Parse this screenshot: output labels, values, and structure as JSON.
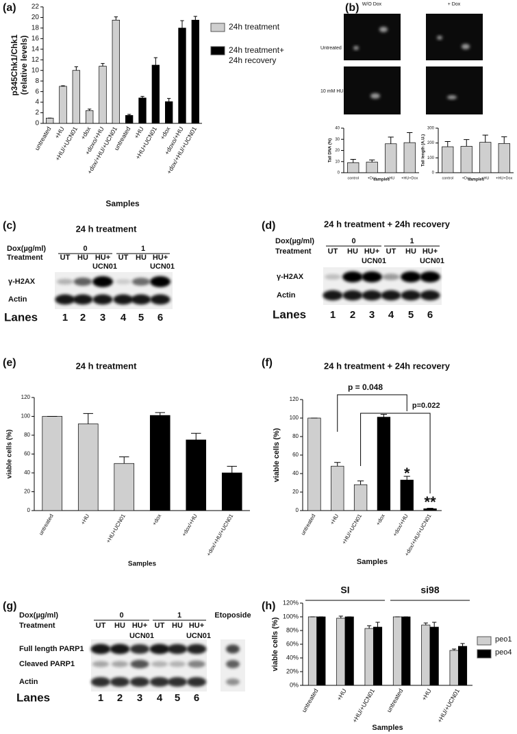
{
  "chart_data": [
    {
      "type": "bar",
      "panel": "(a)",
      "ylabel": [
        "p345Chk1/Chk1",
        "(relative levels)"
      ],
      "xlabel": "Samples",
      "categories": [
        "untreated",
        "+HU",
        "+HU/+UCN01",
        "+dox",
        "+doxo/+HU",
        "+dox/+HU/+UCN01",
        "untreated",
        "+HU",
        "+HU+UCN01",
        "+dox",
        "+doxo/+HU",
        "+dox/+HU/+UCN01"
      ],
      "series": [
        {
          "name": "24h treatment",
          "color": "#cfcfcf",
          "values": [
            1,
            7,
            10,
            2.4,
            10.8,
            19.5,
            null,
            null,
            null,
            null,
            null,
            null
          ],
          "errors": [
            0,
            0.1,
            0.7,
            0.3,
            0.5,
            0.6,
            null,
            null,
            null,
            null,
            null,
            null
          ]
        },
        {
          "name": "24h treatment+ 24h recovery",
          "color": "#000000",
          "values": [
            null,
            null,
            null,
            null,
            null,
            null,
            1.5,
            4.8,
            11,
            4.1,
            18,
            19.5
          ],
          "errors": [
            null,
            null,
            null,
            null,
            null,
            null,
            0.2,
            0.3,
            1.4,
            0.6,
            1.4,
            0.7
          ]
        }
      ],
      "ylim": [
        0,
        22
      ],
      "yticks": [
        0,
        2,
        4,
        6,
        8,
        10,
        12,
        14,
        16,
        18,
        20,
        22
      ]
    },
    {
      "type": "bar",
      "ylabel": "Tail DNA (%)",
      "xlabel": "samples",
      "categories": [
        "control",
        "+Dox",
        "+HU",
        "+HU+Dox"
      ],
      "series": [
        {
          "color": "#cfcfcf",
          "values": [
            9,
            9.5,
            26,
            27
          ],
          "errors": [
            3,
            2,
            6,
            9
          ]
        }
      ],
      "ylim": [
        0,
        40
      ],
      "yticks": [
        0,
        10,
        20,
        30,
        40
      ]
    },
    {
      "type": "bar",
      "ylabel": "Tail length (A.U.)",
      "xlabel": "samples",
      "categories": [
        "control",
        "+Dox",
        "+HU",
        "+HU+Dox"
      ],
      "series": [
        {
          "color": "#cfcfcf",
          "values": [
            175,
            178,
            205,
            197
          ],
          "errors": [
            35,
            45,
            48,
            45
          ]
        }
      ],
      "ylim": [
        0,
        300
      ],
      "yticks": [
        0,
        100,
        200,
        300
      ]
    },
    {
      "type": "bar",
      "panel": "(e)",
      "title": "24 h treatment",
      "ylabel": "viable cells (%)",
      "xlabel": "Samples",
      "categories": [
        "untreated",
        "+HU",
        "+HU+UCN01",
        "+dox",
        "+dox/+HU",
        "+dox/+HU/+UCN01"
      ],
      "series": [
        {
          "colors": [
            "#cfcfcf",
            "#cfcfcf",
            "#cfcfcf",
            "#000000",
            "#000000",
            "#000000"
          ],
          "values": [
            100,
            92,
            50,
            101,
            75,
            40
          ],
          "errors": [
            0,
            11,
            7,
            3,
            7,
            7
          ]
        }
      ],
      "ylim": [
        0,
        120
      ],
      "yticks": [
        0,
        20,
        40,
        60,
        80,
        100,
        120
      ]
    },
    {
      "type": "bar",
      "panel": "(f)",
      "title": "24 h treatment + 24h recovery",
      "ylabel": "viable cells (%)",
      "xlabel": "Samples",
      "categories": [
        "untreated",
        "+HU",
        "+HU/+UCN01",
        "+dox",
        "+dox/+HU",
        "+dox/+HU/+UCN01"
      ],
      "series": [
        {
          "colors": [
            "#cfcfcf",
            "#cfcfcf",
            "#cfcfcf",
            "#000000",
            "#000000",
            "#000000"
          ],
          "values": [
            100,
            48,
            28,
            101,
            33,
            2
          ],
          "errors": [
            0,
            4,
            4,
            3,
            4,
            0.5
          ]
        }
      ],
      "ylim": [
        0,
        120
      ],
      "yticks": [
        0,
        20,
        40,
        60,
        80,
        100,
        120
      ],
      "annotations": [
        "p = 0.048",
        "p=0.022",
        "*",
        "**"
      ]
    },
    {
      "type": "bar",
      "panel": "(h)",
      "ylabel": "viable cells (%)",
      "xlabel": "Samples",
      "categories": [
        "untreated",
        "+HU",
        "+HU/+UCN01",
        "untreated",
        "+HU",
        "+HU/+UCN01"
      ],
      "group_labels": [
        "SI",
        "si98"
      ],
      "series": [
        {
          "name": "peo1",
          "color": "#cfcfcf",
          "values": [
            100,
            98,
            83,
            100,
            88,
            51
          ],
          "errors": [
            0,
            3,
            4,
            0,
            3,
            2
          ]
        },
        {
          "name": "peo4",
          "color": "#000000",
          "values": [
            100,
            100,
            85,
            100,
            85,
            57
          ],
          "errors": [
            0,
            0,
            7,
            0,
            7,
            4
          ]
        }
      ],
      "ylim": [
        0,
        120
      ],
      "yticks": [
        {
          "value": 0,
          "label": "0%"
        },
        {
          "value": 20,
          "label": "20%"
        },
        {
          "value": 40,
          "label": "40%"
        },
        {
          "value": 60,
          "label": "60%"
        },
        {
          "value": 80,
          "label": "80%"
        },
        {
          "value": 100,
          "label": "100%"
        },
        {
          "value": 120,
          "label": "120%"
        }
      ]
    }
  ],
  "comet": {
    "panel": "(b)",
    "col_labels": [
      "W/O Dox",
      "+ Dox"
    ],
    "row_labels": [
      "Untreated",
      "10 mM HU"
    ]
  },
  "blots": [
    {
      "panel": "(c)",
      "title": "24 h treatment",
      "dox_label": "Dox(µg/ml)",
      "dox_levels": [
        "0",
        "1"
      ],
      "treatment_label": "Treatment",
      "lanes": [
        "UT",
        "HU",
        "HU+",
        "UT",
        "HU",
        "HU+"
      ],
      "lane_subs": [
        null,
        null,
        "UCN01",
        null,
        null,
        "UCN01"
      ],
      "rows": [
        "γ-H2AX",
        "Actin"
      ],
      "lanes_label": "Lanes",
      "lane_numbers": [
        1,
        2,
        3,
        4,
        5,
        6
      ]
    },
    {
      "panel": "(d)",
      "title": "24 h treatment + 24h recovery",
      "dox_label": "Dox(µg/ml)",
      "dox_levels": [
        "0",
        "1"
      ],
      "treatment_label": "Treatment",
      "lanes": [
        "UT",
        "HU",
        "HU+",
        "UT",
        "HU",
        "HU+"
      ],
      "lane_subs": [
        null,
        null,
        "UCN01",
        null,
        null,
        "UCN01"
      ],
      "rows": [
        "γ-H2AX",
        "Actin"
      ],
      "lanes_label": "Lanes",
      "lane_numbers": [
        1,
        2,
        3,
        4,
        5,
        6
      ]
    },
    {
      "panel": "(g)",
      "dox_label": "Dox(µg/ml)",
      "dox_levels": [
        "0",
        "1"
      ],
      "treatment_label": "Treatment",
      "extra_lane": "Etoposide",
      "lanes": [
        "UT",
        "HU",
        "HU+",
        "UT",
        "HU",
        "HU+"
      ],
      "lane_subs": [
        null,
        null,
        "UCN01",
        null,
        null,
        "UCN01"
      ],
      "rows": [
        "Full length PARP1",
        "Cleaved PARP1",
        "Actin"
      ],
      "lanes_label": "Lanes",
      "lane_numbers": [
        1,
        2,
        3,
        4,
        5,
        6
      ]
    }
  ]
}
